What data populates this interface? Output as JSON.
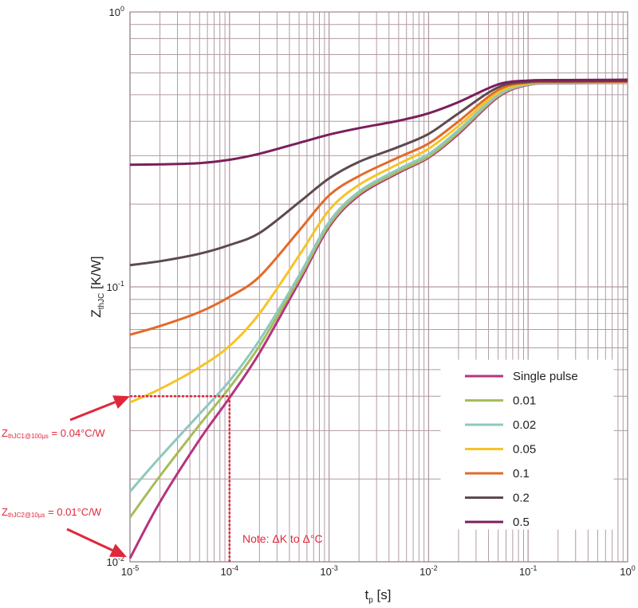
{
  "chart_data": {
    "type": "line",
    "x_scale": "log",
    "y_scale": "log",
    "xlim": [
      1e-05,
      1
    ],
    "ylim": [
      0.01,
      1
    ],
    "grid": true,
    "legend_position": "bottom-right",
    "xlabel_main": "t",
    "xlabel_sub": "p",
    "xlabel_unit": "[s]",
    "ylabel_main": "Z",
    "ylabel_sub": "thJC",
    "ylabel_unit": "[K/W]",
    "x_ticks": [
      {
        "value": 1e-05,
        "base": "10",
        "exp": "-5"
      },
      {
        "value": 0.0001,
        "base": "10",
        "exp": "-4"
      },
      {
        "value": 0.001,
        "base": "10",
        "exp": "-3"
      },
      {
        "value": 0.01,
        "base": "10",
        "exp": "-2"
      },
      {
        "value": 0.1,
        "base": "10",
        "exp": "-1"
      },
      {
        "value": 1,
        "base": "10",
        "exp": "0"
      }
    ],
    "y_ticks": [
      {
        "value": 0.01,
        "base": "10",
        "exp": "-2"
      },
      {
        "value": 0.1,
        "base": "10",
        "exp": "-1"
      },
      {
        "value": 1,
        "base": "10",
        "exp": "0"
      }
    ],
    "series": [
      {
        "name": "Single pulse",
        "color": "#b5337f",
        "x": [
          1e-05,
          2e-05,
          5e-05,
          0.0001,
          0.0002,
          0.0005,
          0.001,
          0.002,
          0.005,
          0.01,
          0.02,
          0.05,
          0.1,
          0.2,
          0.5,
          1
        ],
        "y": [
          0.0103,
          0.0165,
          0.0278,
          0.0395,
          0.0575,
          0.104,
          0.165,
          0.215,
          0.26,
          0.295,
          0.36,
          0.49,
          0.543,
          0.55,
          0.551,
          0.552
        ]
      },
      {
        "name": "0.01",
        "color": "#a5bd5a",
        "x": [
          1e-05,
          2e-05,
          5e-05,
          0.0001,
          0.0002,
          0.0005,
          0.001,
          0.002,
          0.005,
          0.01,
          0.02,
          0.05,
          0.1,
          0.2,
          0.5,
          1
        ],
        "y": [
          0.0145,
          0.0205,
          0.0315,
          0.043,
          0.061,
          0.107,
          0.168,
          0.218,
          0.263,
          0.298,
          0.365,
          0.495,
          0.545,
          0.551,
          0.552,
          0.553
        ]
      },
      {
        "name": "0.02",
        "color": "#8fc8bf",
        "x": [
          1e-05,
          2e-05,
          5e-05,
          0.0001,
          0.0002,
          0.0005,
          0.001,
          0.002,
          0.005,
          0.01,
          0.02,
          0.05,
          0.1,
          0.2,
          0.5,
          1
        ],
        "y": [
          0.018,
          0.024,
          0.0345,
          0.0455,
          0.064,
          0.11,
          0.172,
          0.222,
          0.268,
          0.304,
          0.372,
          0.5,
          0.547,
          0.552,
          0.553,
          0.554
        ]
      },
      {
        "name": "0.05",
        "color": "#f5c426",
        "x": [
          1e-05,
          2e-05,
          5e-05,
          0.0001,
          0.0002,
          0.0005,
          0.001,
          0.002,
          0.005,
          0.01,
          0.02,
          0.05,
          0.1,
          0.2,
          0.5,
          1
        ],
        "y": [
          0.038,
          0.0425,
          0.051,
          0.061,
          0.08,
          0.13,
          0.19,
          0.235,
          0.28,
          0.318,
          0.385,
          0.51,
          0.55,
          0.554,
          0.555,
          0.556
        ]
      },
      {
        "name": "0.1",
        "color": "#e36a2a",
        "x": [
          1e-05,
          2e-05,
          5e-05,
          0.0001,
          0.0002,
          0.0005,
          0.001,
          0.002,
          0.005,
          0.01,
          0.02,
          0.05,
          0.1,
          0.2,
          0.5,
          1
        ],
        "y": [
          0.067,
          0.072,
          0.081,
          0.092,
          0.109,
          0.16,
          0.215,
          0.253,
          0.296,
          0.332,
          0.4,
          0.52,
          0.553,
          0.556,
          0.557,
          0.558
        ]
      },
      {
        "name": "0.2",
        "color": "#5c4a50",
        "x": [
          1e-05,
          2e-05,
          5e-05,
          0.0001,
          0.0002,
          0.0005,
          0.001,
          0.002,
          0.005,
          0.01,
          0.02,
          0.05,
          0.1,
          0.2,
          0.5,
          1
        ],
        "y": [
          0.12,
          0.124,
          0.132,
          0.142,
          0.157,
          0.203,
          0.248,
          0.285,
          0.323,
          0.36,
          0.428,
          0.532,
          0.557,
          0.559,
          0.56,
          0.561
        ]
      },
      {
        "name": "0.5",
        "color": "#7b1f5b",
        "x": [
          1e-05,
          2e-05,
          5e-05,
          0.0001,
          0.0002,
          0.0005,
          0.001,
          0.002,
          0.005,
          0.01,
          0.02,
          0.05,
          0.1,
          0.2,
          0.5,
          1
        ],
        "y": [
          0.278,
          0.279,
          0.282,
          0.29,
          0.305,
          0.334,
          0.358,
          0.378,
          0.402,
          0.428,
          0.47,
          0.545,
          0.563,
          0.565,
          0.566,
          0.567
        ]
      }
    ],
    "annotations": [
      {
        "id": "note",
        "text": "Note: ΔK to Δ°C",
        "x": 0.0001,
        "y": 0.01
      },
      {
        "id": "zth1",
        "label_main": "Z",
        "label_sub": "thJC1@100µs",
        "label_tail": " = 0.04°C/W",
        "x": 0.0001,
        "y": 0.04
      },
      {
        "id": "zth2",
        "label_main": "Z",
        "label_sub": "thJC2@10µs",
        "label_tail": " = 0.01°C/W",
        "x": 1e-05,
        "y": 0.01
      }
    ],
    "accent_color": "#e0283c",
    "grid_color": "#b09ca4"
  }
}
